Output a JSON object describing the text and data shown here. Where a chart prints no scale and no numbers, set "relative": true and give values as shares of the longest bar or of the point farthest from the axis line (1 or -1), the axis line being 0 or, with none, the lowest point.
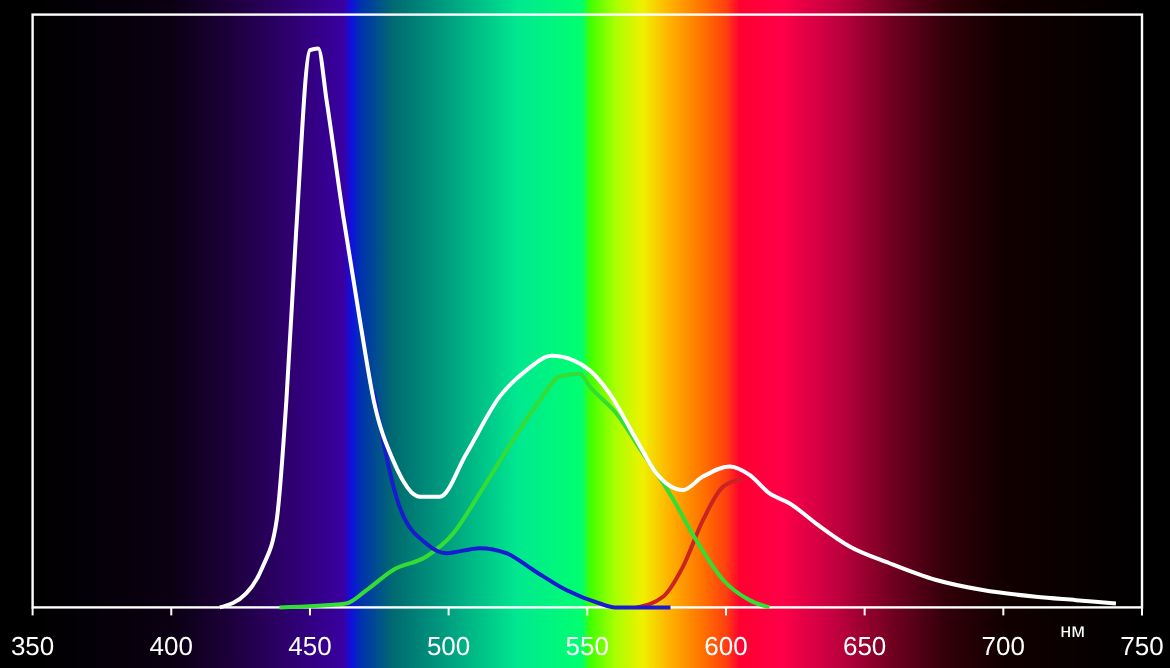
{
  "chart_data": {
    "type": "line",
    "relative": true,
    "xlabel": "нм",
    "xlim": [
      350,
      750
    ],
    "xticks": [
      350,
      400,
      450,
      500,
      550,
      600,
      650,
      700,
      750
    ],
    "grid": false,
    "marker": "none",
    "line_style": "solid",
    "series": [
      {
        "color": "#ffffff",
        "x": [
          417.5,
          427,
          433,
          438,
          441.5,
          445,
          450,
          453,
          456,
          462,
          468,
          473,
          480,
          489.6,
          496.8,
          506.4,
          518.4,
          528,
          537.2,
          545,
          550.9,
          558,
          567.7,
          574.9,
          584.5,
          591.7,
          601.3,
          608.5,
          615.7,
          623,
          632.5,
          644.6,
          659,
          675.8,
          692.6,
          711.8,
          726.2,
          740.6
        ],
        "values": [
          0,
          0.025,
          0.073,
          0.156,
          0.37,
          0.67,
          0.997,
          1,
          0.907,
          0.7,
          0.514,
          0.37,
          0.263,
          0.198,
          0.198,
          0.275,
          0.377,
          0.424,
          0.45,
          0.442,
          0.424,
          0.383,
          0.3,
          0.24,
          0.21,
          0.234,
          0.252,
          0.237,
          0.204,
          0.186,
          0.15,
          0.109,
          0.079,
          0.049,
          0.031,
          0.019,
          0.013,
          0.007
        ]
      },
      {
        "color": "#1a1ad0",
        "x": [
          473,
          482.3,
          492,
          499.2,
          511.2,
          520.8,
          530.5,
          542.4,
          554.5,
          560,
          580
        ],
        "values": [
          0.385,
          0.18,
          0.114,
          0.097,
          0.106,
          0.097,
          0.067,
          0.031,
          0.007,
          0,
          0
        ]
      },
      {
        "color": "#33dd33",
        "x": [
          439,
          463,
          470.4,
          480,
          492,
          501.6,
          511.2,
          523.3,
          532.8,
          540,
          547.3,
          550.9,
          560.5,
          570.1,
          579.7,
          589.3,
          599,
          608.5,
          615.7
        ],
        "values": [
          0,
          0.007,
          0.031,
          0.067,
          0.091,
          0.132,
          0.204,
          0.3,
          0.37,
          0.413,
          0.418,
          0.395,
          0.347,
          0.275,
          0.204,
          0.12,
          0.049,
          0.013,
          0
        ]
      },
      {
        "color": "#cc2222",
        "x": [
          567.7,
          577.3,
          584.5,
          591.7,
          599,
          606.1
        ],
        "values": [
          0,
          0.019,
          0.073,
          0.156,
          0.216,
          0.23
        ]
      }
    ]
  }
}
